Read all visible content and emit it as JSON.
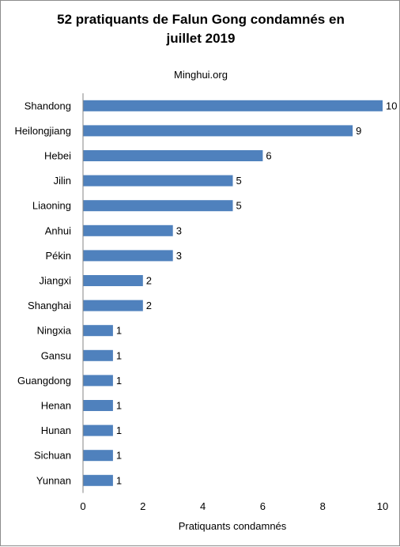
{
  "chart_data": {
    "type": "bar",
    "orientation": "horizontal",
    "title_lines": [
      "52 pratiquants  de Falun Gong condamnés en",
      "juillet 2019"
    ],
    "subtitle": "Minghui.org",
    "xlabel": "Pratiquants condamnés",
    "ylabel": "",
    "xlim": [
      0,
      10
    ],
    "xticks": [
      0,
      2,
      4,
      6,
      8,
      10
    ],
    "grid": false,
    "legend": "none",
    "bar_color": "#4f81bd",
    "categories": [
      "Shandong",
      "Heilongjiang",
      "Hebei",
      "Jilin",
      "Liaoning",
      "Anhui",
      "Pékin",
      "Jiangxi",
      "Shanghai",
      "Ningxia",
      "Gansu",
      "Guangdong",
      "Henan",
      "Hunan",
      "Sichuan",
      "Yunnan"
    ],
    "values": [
      10,
      9,
      6,
      5,
      5,
      3,
      3,
      2,
      2,
      1,
      1,
      1,
      1,
      1,
      1,
      1
    ],
    "data_labels": [
      "10",
      "9",
      "6",
      "5",
      "5",
      "3",
      "3",
      "2",
      "2",
      "1",
      "1",
      "1",
      "1",
      "1",
      "1",
      "1"
    ]
  }
}
